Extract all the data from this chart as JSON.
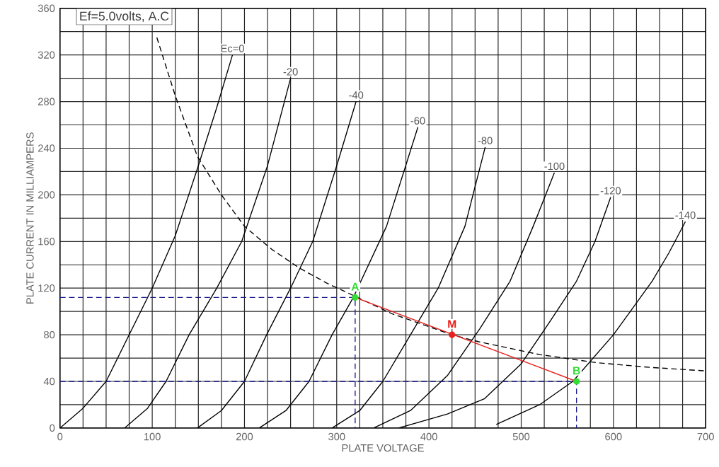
{
  "chart_data": {
    "type": "line",
    "title": "Ef=5.0volts, A.C",
    "xlabel": "PLATE VOLTAGE",
    "ylabel": "PLATE CURRENT IN MILLIAMPERS",
    "xlim": [
      0,
      700
    ],
    "ylim": [
      0,
      360
    ],
    "grid": true,
    "xticks": [
      0,
      {
        "value": 25,
        "label": null
      },
      {
        "value": 50,
        "label": null
      },
      {
        "value": 75,
        "label": null
      },
      100,
      {
        "value": 125,
        "label": null
      },
      {
        "value": 150,
        "label": null
      },
      {
        "value": 175,
        "label": null
      },
      200,
      {
        "value": 225,
        "label": null
      },
      {
        "value": 250,
        "label": null
      },
      {
        "value": 275,
        "label": null
      },
      300,
      {
        "value": 325,
        "label": null
      },
      {
        "value": 350,
        "label": null
      },
      {
        "value": 375,
        "label": null
      },
      400,
      {
        "value": 425,
        "label": null
      },
      {
        "value": 450,
        "label": null
      },
      {
        "value": 475,
        "label": null
      },
      500,
      {
        "value": 525,
        "label": null
      },
      {
        "value": 550,
        "label": null
      },
      {
        "value": 575,
        "label": null
      },
      600,
      {
        "value": 625,
        "label": null
      },
      {
        "value": 650,
        "label": null
      },
      {
        "value": 675,
        "label": null
      },
      700
    ],
    "yticks": [
      0,
      {
        "value": 20,
        "label": null
      },
      40,
      {
        "value": 60,
        "label": null
      },
      80,
      {
        "value": 100,
        "label": null
      },
      120,
      {
        "value": 140,
        "label": null
      },
      160,
      {
        "value": 180,
        "label": null
      },
      200,
      {
        "value": 220,
        "label": null
      },
      240,
      {
        "value": 260,
        "label": null
      },
      280,
      {
        "value": 300,
        "label": null
      },
      320,
      {
        "value": 340,
        "label": null
      },
      360
    ],
    "series": [
      {
        "name": "Ec=0",
        "color": "#000000",
        "x": [
          0,
          25,
          50,
          75,
          100,
          125,
          150,
          170,
          187
        ],
        "values": [
          0,
          17,
          40,
          80,
          120,
          165,
          225,
          275,
          320
        ]
      },
      {
        "name": "-20",
        "color": "#000000",
        "x": [
          70,
          95,
          115,
          140,
          170,
          197,
          225,
          250
        ],
        "values": [
          0,
          17,
          40,
          80,
          120,
          160,
          225,
          300
        ]
      },
      {
        "name": "-40",
        "color": "#000000",
        "x": [
          149,
          175,
          200,
          224,
          250,
          274,
          300,
          321
        ],
        "values": [
          0,
          15,
          40,
          80,
          120,
          160,
          225,
          280
        ]
      },
      {
        "name": "-60",
        "color": "#000000",
        "x": [
          216,
          245,
          270,
          295,
          318,
          354,
          388
        ],
        "values": [
          0,
          15,
          40,
          80,
          112,
          173,
          258
        ]
      },
      {
        "name": "-80",
        "color": "#000000",
        "x": [
          295,
          325,
          350,
          380,
          410,
          439,
          461
        ],
        "values": [
          0,
          15,
          40,
          80,
          120,
          173,
          241
        ]
      },
      {
        "name": "-100",
        "color": "#000000",
        "x": [
          340,
          380,
          420,
          455,
          488,
          513,
          536
        ],
        "values": [
          0,
          15,
          45,
          85,
          126,
          173,
          219
        ]
      },
      {
        "name": "-120",
        "color": "#000000",
        "x": [
          367,
          420,
          460,
          500,
          530,
          560,
          580,
          597
        ],
        "values": [
          0,
          12,
          25,
          55,
          90,
          126,
          160,
          198
        ]
      },
      {
        "name": "-140",
        "color": "#000000",
        "x": [
          473,
          520,
          556,
          600,
          642,
          660,
          678
        ],
        "values": [
          3,
          20,
          40,
          80,
          126,
          150,
          177
        ]
      },
      {
        "color": "#000000",
        "line_style": "dashed",
        "x": [
          105,
          125,
          149,
          175,
          200,
          230,
          260,
          290,
          320,
          360,
          425,
          454,
          520,
          582,
          640,
          700
        ],
        "values": [
          335,
          285,
          233,
          200,
          173,
          153,
          137,
          124,
          113,
          98,
          80,
          74,
          63,
          56,
          52,
          49
        ]
      },
      {
        "color": "#1a1a8c",
        "line_style": "dashed",
        "x": [
          0,
          320,
          320
        ],
        "values": [
          112,
          112,
          0
        ]
      },
      {
        "color": "#1a1a8c",
        "line_style": "dashed",
        "x": [
          0,
          560,
          560
        ],
        "values": [
          40,
          40,
          0
        ]
      },
      {
        "color": "#e8201e",
        "x": [
          320,
          560
        ],
        "values": [
          112,
          40
        ]
      },
      {
        "name": "A",
        "type": "scatter",
        "marker": "circle",
        "color": "#33dd33",
        "x": [
          320
        ],
        "values": [
          112
        ]
      },
      {
        "name": "M",
        "type": "scatter",
        "marker": "circle",
        "color": "#e8201e",
        "x": [
          425
        ],
        "values": [
          80
        ]
      },
      {
        "name": "B",
        "type": "scatter",
        "marker": "circle",
        "color": "#33dd33",
        "x": [
          560
        ],
        "values": [
          40
        ]
      }
    ]
  }
}
